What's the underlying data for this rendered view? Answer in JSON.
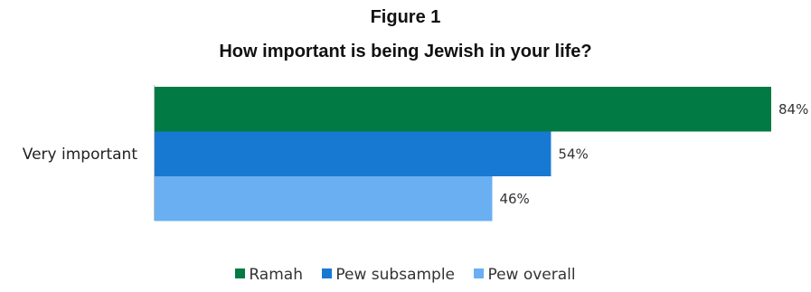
{
  "title_line1": "Figure 1",
  "title_line2": "How important is being Jewish in your life?",
  "chart_data": {
    "type": "bar",
    "orientation": "horizontal",
    "categories": [
      "Very important"
    ],
    "series": [
      {
        "name": "Ramah",
        "values": [
          84
        ],
        "labels": [
          "84%"
        ],
        "color": "#017a44"
      },
      {
        "name": "Pew subsample",
        "values": [
          54
        ],
        "labels": [
          "54%"
        ],
        "color": "#1779d2"
      },
      {
        "name": "Pew overall",
        "values": [
          46
        ],
        "labels": [
          "46%"
        ],
        "color": "#69aff2"
      }
    ],
    "xlim": [
      0,
      100
    ],
    "grid": false,
    "legend_position": "bottom"
  }
}
